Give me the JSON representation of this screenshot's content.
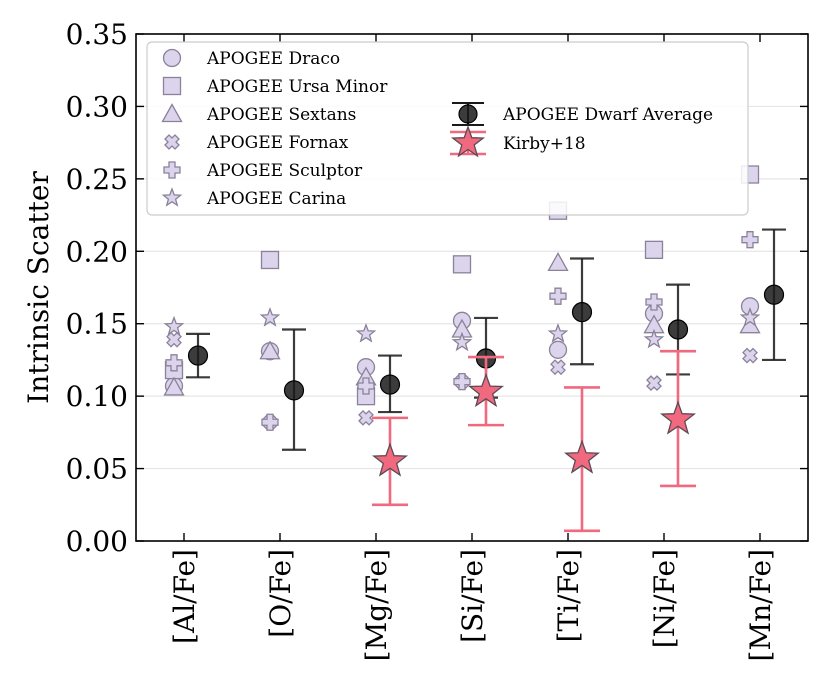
{
  "chart_data": {
    "type": "scatter",
    "title": "",
    "xlabel": "",
    "ylabel": "Intrinsic Scatter",
    "ylim": [
      0.0,
      0.35
    ],
    "yticks": [
      0.0,
      0.05,
      0.1,
      0.15,
      0.2,
      0.25,
      0.3,
      0.35
    ],
    "ytick_labels": [
      "0.00",
      "0.05",
      "0.10",
      "0.15",
      "0.20",
      "0.25",
      "0.30",
      "0.35"
    ],
    "grid": "horizontal",
    "legend_position": "top-left",
    "categories": [
      "[Al/Fe]",
      "[O/Fe]",
      "[Mg/Fe]",
      "[Si/Fe]",
      "[Ti/Fe]",
      "[Ni/Fe]",
      "[Mn/Fe]"
    ],
    "colors": {
      "dwarf_face": "#dcd4ec",
      "dwarf_edge": "#8a8299",
      "average": "#1a1a1a",
      "kirby": "#f0697e"
    },
    "series": [
      {
        "name": "APOGEE Draco",
        "marker": "circle",
        "values": [
          0.107,
          0.131,
          0.12,
          0.152,
          0.132,
          0.157,
          0.162
        ]
      },
      {
        "name": "APOGEE Ursa Minor",
        "marker": "square",
        "values": [
          0.118,
          0.194,
          0.1,
          0.191,
          0.228,
          0.201,
          0.253
        ]
      },
      {
        "name": "APOGEE Sextans",
        "marker": "triangle",
        "values": [
          0.106,
          0.131,
          0.113,
          0.146,
          0.192,
          0.149,
          0.149
        ]
      },
      {
        "name": "APOGEE Fornax",
        "marker": "x",
        "values": [
          0.139,
          0.082,
          0.085,
          0.11,
          0.12,
          0.109,
          0.128
        ]
      },
      {
        "name": "APOGEE Sculptor",
        "marker": "plus",
        "values": [
          0.123,
          0.082,
          0.107,
          0.11,
          0.169,
          0.165,
          0.208
        ]
      },
      {
        "name": "APOGEE Carina",
        "marker": "star",
        "values": [
          0.148,
          0.154,
          0.143,
          0.137,
          0.143,
          0.139,
          0.154
        ]
      },
      {
        "name": "APOGEE Dwarf Average",
        "marker": "circle-errorbar",
        "values": [
          0.128,
          0.104,
          0.108,
          0.126,
          0.158,
          0.146,
          0.17
        ],
        "err_low": [
          0.113,
          0.063,
          0.089,
          0.099,
          0.122,
          0.115,
          0.125
        ],
        "err_high": [
          0.143,
          0.146,
          0.128,
          0.154,
          0.195,
          0.177,
          0.215
        ]
      },
      {
        "name": "Kirby+18",
        "marker": "star-errorbar",
        "values": [
          null,
          null,
          0.055,
          0.103,
          0.057,
          0.084,
          null
        ],
        "err_low": [
          null,
          null,
          0.025,
          0.08,
          0.007,
          0.038,
          null
        ],
        "err_high": [
          null,
          null,
          0.085,
          0.127,
          0.106,
          0.131,
          null
        ]
      }
    ]
  }
}
